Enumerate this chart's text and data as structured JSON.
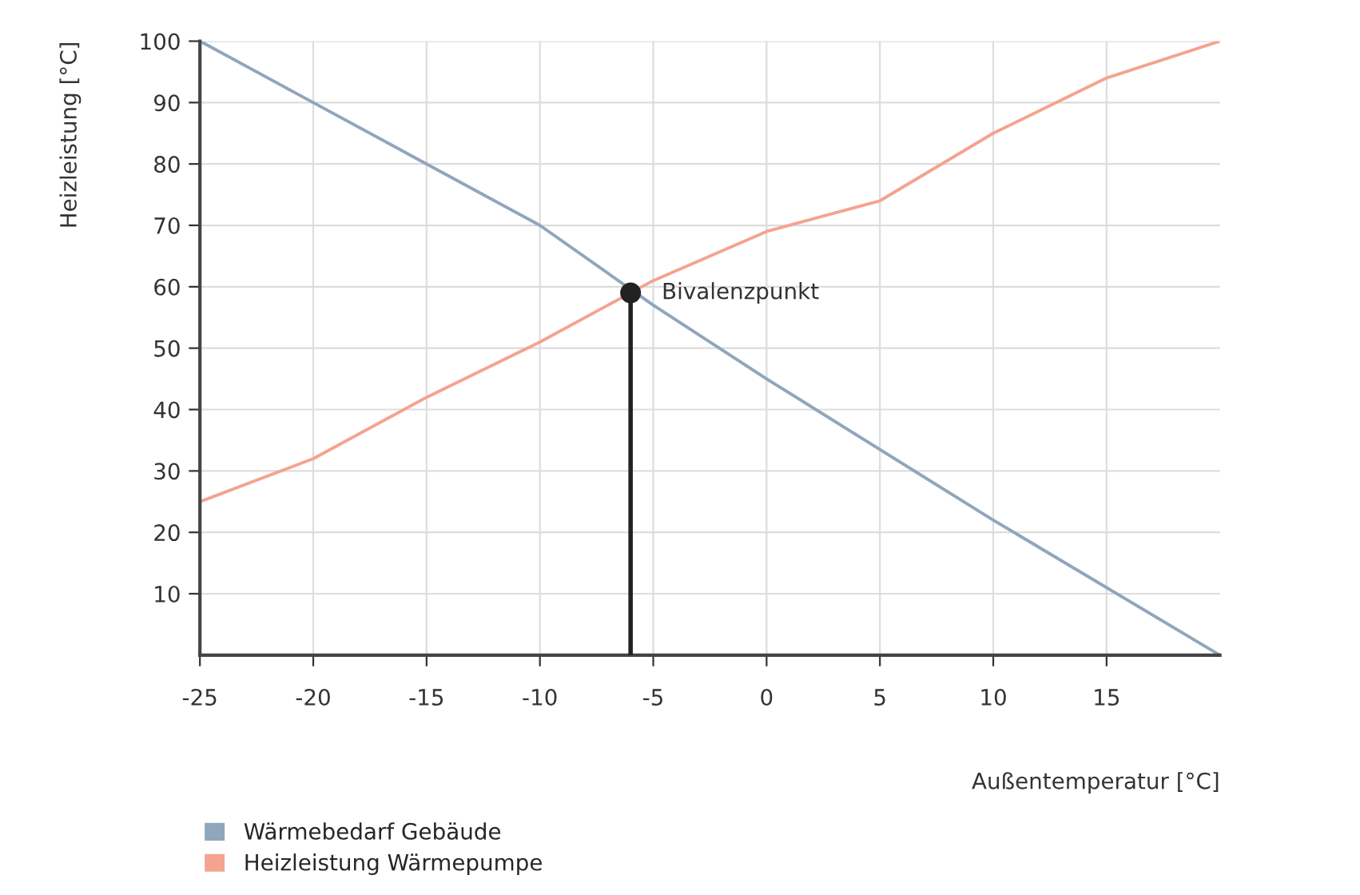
{
  "chart_data": {
    "type": "line",
    "xlabel": "Außentemperatur [°C]",
    "ylabel": "Heizleistung [°C]",
    "series": [
      {
        "name": "Wärmebedarf Gebäude",
        "color": "#8fa6bd",
        "x": [
          -25,
          -20,
          -10,
          -5,
          0,
          10,
          20
        ],
        "values": [
          100,
          90,
          70,
          57,
          45,
          22,
          0
        ]
      },
      {
        "name": "Heizleistung Wärmepumpe",
        "color": "#f4a38f",
        "x": [
          -25,
          -20,
          -15,
          -10,
          -5,
          0,
          5,
          10,
          15,
          20
        ],
        "values": [
          25,
          32,
          42,
          51,
          61,
          69,
          74,
          85,
          94,
          100
        ]
      },
      {
        "type": "lollipop",
        "marker": "circle",
        "color": "#222222",
        "x": [
          -6
        ],
        "values": [
          59
        ]
      }
    ],
    "annotations": [
      {
        "text": "Bivalenzpunkt",
        "x": -6,
        "y": 59
      }
    ],
    "xlim": [
      -25,
      20
    ],
    "xticks": [
      -25,
      -20,
      -15,
      -10,
      -5,
      0,
      5,
      10,
      15
    ],
    "ylim": [
      0,
      100
    ],
    "yticks": [
      10,
      20,
      30,
      40,
      50,
      60,
      70,
      80,
      90,
      100
    ],
    "grid": true,
    "legend": "bottom left"
  }
}
